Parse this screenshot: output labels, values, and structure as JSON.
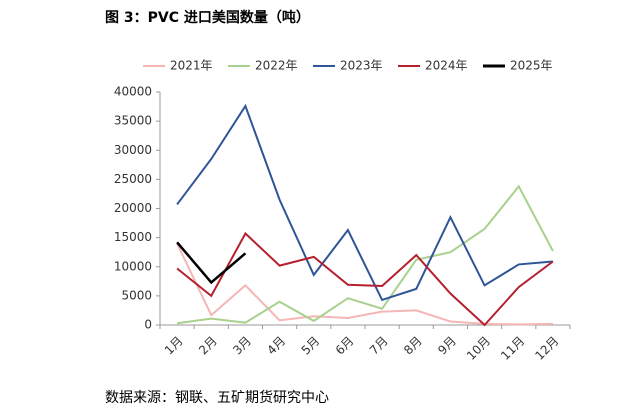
{
  "chart_data": {
    "type": "line",
    "title": "图 3：PVC 进口美国数量（吨）",
    "source": "数据来源：钢联、五矿期货研究中心",
    "categories": [
      "1月",
      "2月",
      "3月",
      "4月",
      "5月",
      "6月",
      "7月",
      "8月",
      "9月",
      "10月",
      "11月",
      "12月"
    ],
    "series": [
      {
        "name": "2021年",
        "color": "#f4b6b6",
        "values": [
          14000,
          1700,
          6800,
          800,
          1500,
          1200,
          2300,
          2500,
          600,
          200,
          100,
          200
        ]
      },
      {
        "name": "2022年",
        "color": "#a9d18e",
        "values": [
          300,
          1100,
          400,
          4000,
          700,
          4600,
          2800,
          11200,
          12500,
          16500,
          23800,
          12700
        ]
      },
      {
        "name": "2023年",
        "color": "#2f5597",
        "values": [
          20700,
          28500,
          37600,
          21500,
          8600,
          16300,
          4300,
          6200,
          18500,
          6800,
          10400,
          10900
        ]
      },
      {
        "name": "2024年",
        "color": "#b5202e",
        "values": [
          9700,
          5000,
          15700,
          10200,
          11700,
          6900,
          6700,
          12000,
          5400,
          0,
          6500,
          10900
        ]
      },
      {
        "name": "2025年",
        "color": "#000000",
        "values": [
          14200,
          7300,
          12300,
          null,
          null,
          null,
          null,
          null,
          null,
          null,
          null,
          null
        ]
      }
    ],
    "ylim": [
      0,
      40000
    ],
    "yticks": [
      0,
      5000,
      10000,
      15000,
      20000,
      25000,
      30000,
      35000,
      40000
    ],
    "grid": false,
    "legend": "top"
  }
}
